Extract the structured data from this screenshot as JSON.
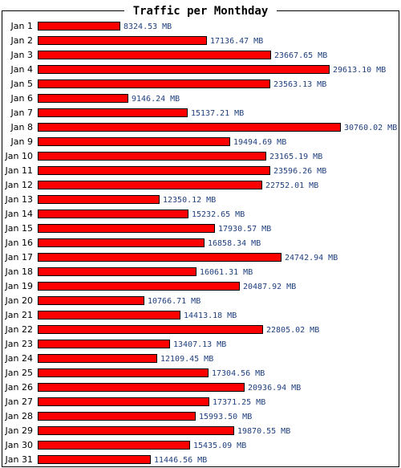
{
  "chart_data": {
    "type": "bar",
    "orientation": "horizontal",
    "title": "Traffic per Monthday",
    "unit": "MB",
    "bar_color": "#ff0000",
    "bar_border_color": "#000000",
    "label_color": "#1f3f7f",
    "grid": false,
    "legend": "none",
    "xlim": [
      0,
      30760.02
    ],
    "categories": [
      "Jan 1",
      "Jan 2",
      "Jan 3",
      "Jan 4",
      "Jan 5",
      "Jan 6",
      "Jan 7",
      "Jan 8",
      "Jan 9",
      "Jan 10",
      "Jan 11",
      "Jan 12",
      "Jan 13",
      "Jan 14",
      "Jan 15",
      "Jan 16",
      "Jan 17",
      "Jan 18",
      "Jan 19",
      "Jan 20",
      "Jan 21",
      "Jan 22",
      "Jan 23",
      "Jan 24",
      "Jan 25",
      "Jan 26",
      "Jan 27",
      "Jan 28",
      "Jan 29",
      "Jan 30",
      "Jan 31"
    ],
    "values": [
      8324.53,
      17136.47,
      23667.65,
      29613.1,
      23563.13,
      9146.24,
      15137.21,
      30760.02,
      19494.69,
      23165.19,
      23596.26,
      22752.01,
      12350.12,
      15232.65,
      17930.57,
      16858.34,
      24742.94,
      16061.31,
      20487.92,
      10766.71,
      14413.18,
      22805.02,
      13407.13,
      12109.45,
      17304.56,
      20936.94,
      17371.25,
      15993.5,
      19870.55,
      15435.09,
      11446.56
    ],
    "value_labels": [
      "8324.53 MB",
      "17136.47 MB",
      "23667.65 MB",
      "29613.10 MB",
      "23563.13 MB",
      "9146.24 MB",
      "15137.21 MB",
      "30760.02 MB",
      "19494.69 MB",
      "23165.19 MB",
      "23596.26 MB",
      "22752.01 MB",
      "12350.12 MB",
      "15232.65 MB",
      "17930.57 MB",
      "16858.34 MB",
      "24742.94 MB",
      "16061.31 MB",
      "20487.92 MB",
      "10766.71 MB",
      "14413.18 MB",
      "22805.02 MB",
      "13407.13 MB",
      "12109.45 MB",
      "17304.56 MB",
      "20936.94 MB",
      "17371.25 MB",
      "15993.50 MB",
      "19870.55 MB",
      "15435.09 MB",
      "11446.56 MB"
    ]
  }
}
